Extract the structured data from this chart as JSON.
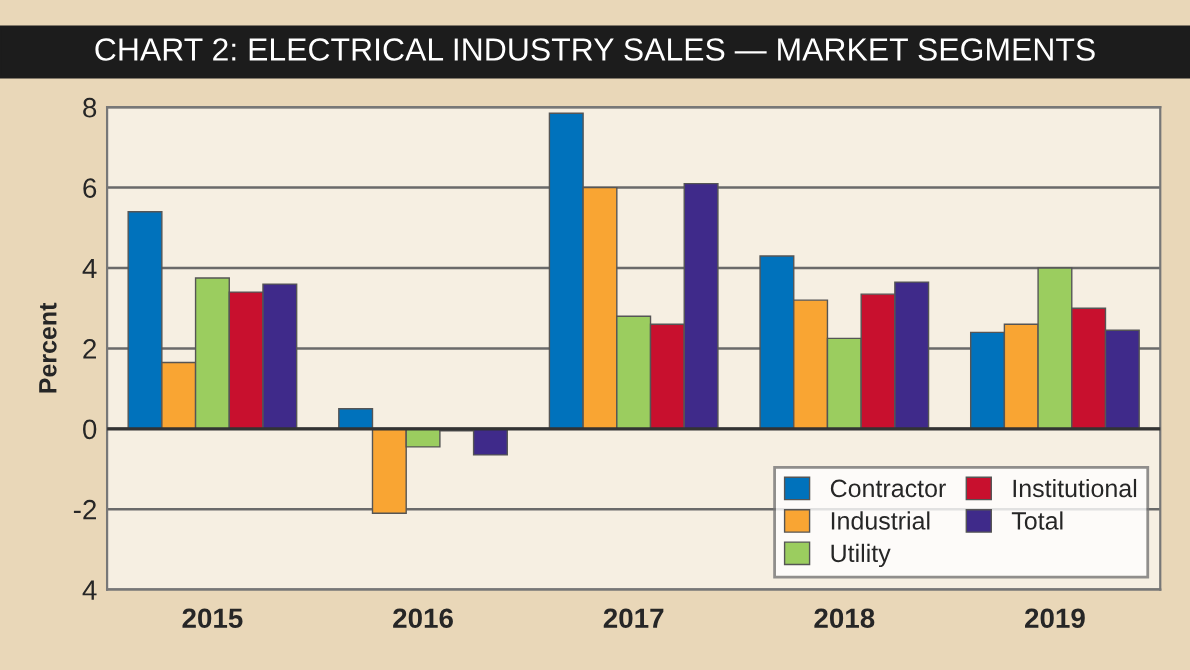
{
  "chart_data": {
    "type": "bar",
    "title": "CHART 2: ELECTRICAL INDUSTRY SALES — MARKET SEGMENTS",
    "ylabel": "Percent",
    "categories": [
      "2015",
      "2016",
      "2017",
      "2018",
      "2019"
    ],
    "series": [
      {
        "name": "Contractor",
        "color": "#0072bc",
        "values": [
          5.4,
          0.5,
          7.85,
          4.3,
          2.4
        ]
      },
      {
        "name": "Industrial",
        "color": "#f9a533",
        "values": [
          1.65,
          -2.1,
          6.0,
          3.2,
          2.6
        ]
      },
      {
        "name": "Utility",
        "color": "#9bcd5f",
        "values": [
          3.75,
          -0.45,
          2.8,
          2.25,
          4.0
        ]
      },
      {
        "name": "Institutional",
        "color": "#c8102e",
        "values": [
          3.4,
          -0.05,
          2.6,
          3.35,
          3.0
        ]
      },
      {
        "name": "Total",
        "color": "#3f2a8a",
        "values": [
          3.6,
          -0.65,
          6.1,
          3.65,
          2.45
        ]
      }
    ],
    "ylim": [
      -4,
      8
    ],
    "yticks": [
      {
        "value": -4,
        "label": "4"
      },
      {
        "value": -2,
        "label": "-2"
      },
      0,
      2,
      4,
      6,
      8
    ],
    "grid": "y",
    "legend": "bottom right"
  }
}
